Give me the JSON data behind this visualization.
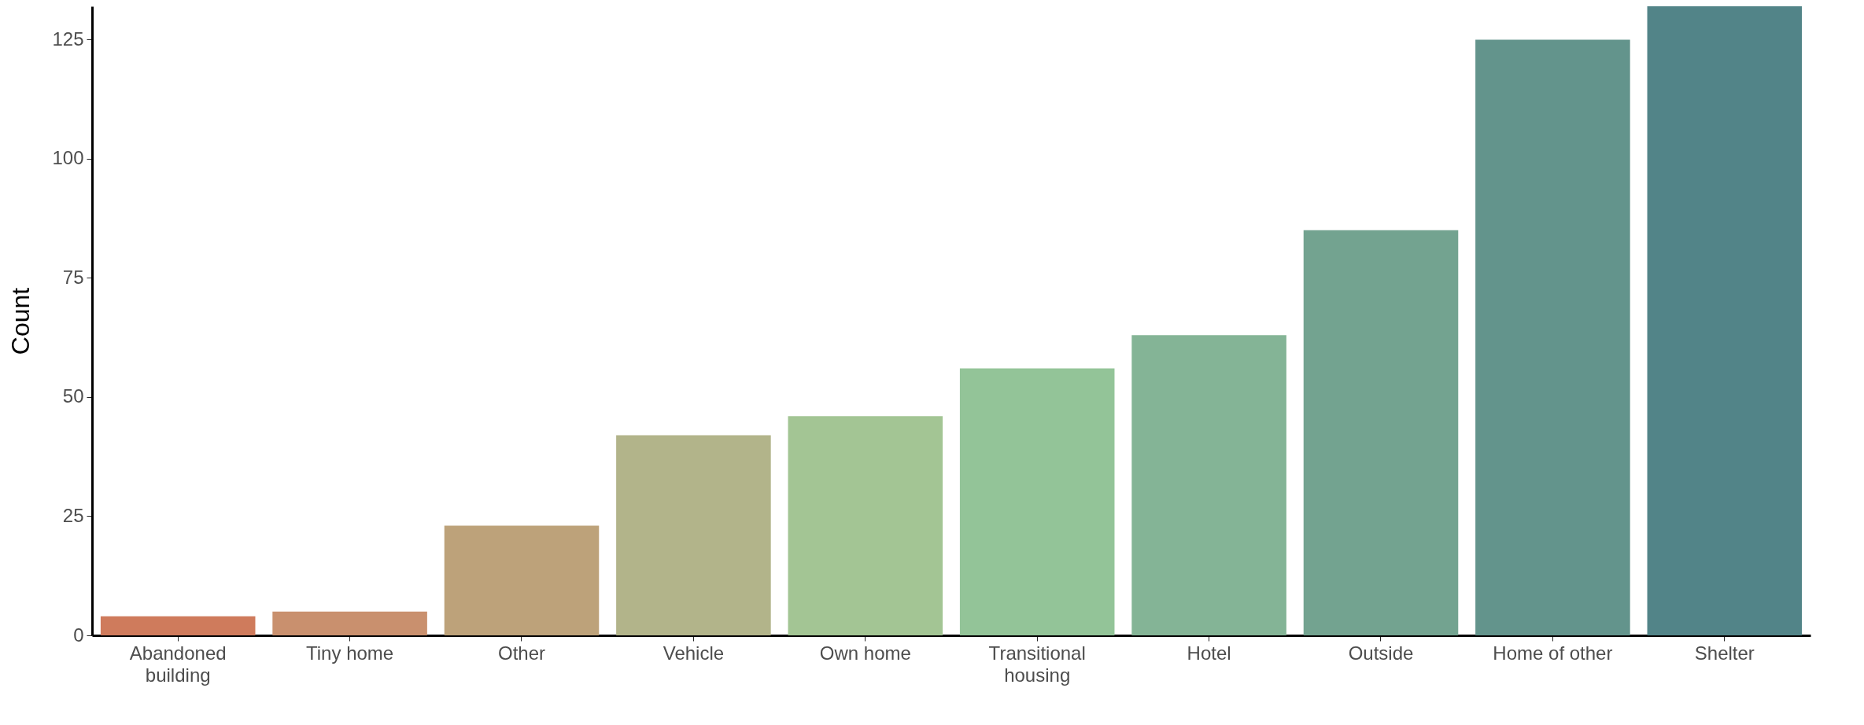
{
  "chart_data": {
    "type": "bar",
    "ylabel": "Count",
    "categories": [
      "Abandoned\nbuilding",
      "Tiny home",
      "Other",
      "Vehicle",
      "Own home",
      "Transitional\nhousing",
      "Hotel",
      "Outside",
      "Home of other",
      "Shelter"
    ],
    "values": [
      4,
      5,
      23,
      42,
      46,
      56,
      63,
      85,
      125,
      132
    ],
    "colors": [
      "#cf7b5c",
      "#c9906e",
      "#bda27a",
      "#b2b48a",
      "#a3c594",
      "#93c498",
      "#84b496",
      "#73a390",
      "#63948c",
      "#528488"
    ],
    "ylim": [
      0,
      132
    ],
    "yticks": [
      0,
      25,
      50,
      75,
      100,
      125
    ],
    "grid": false
  }
}
